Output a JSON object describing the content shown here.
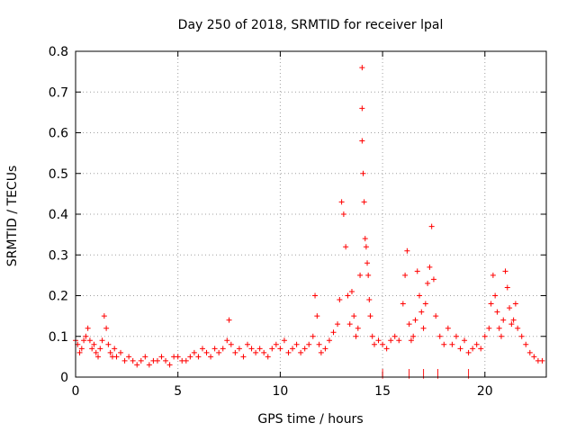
{
  "chart_data": {
    "type": "scatter",
    "title": "Day 250 of 2018, SRMTID for receiver lpal",
    "xlabel": "GPS time / hours",
    "ylabel": "SRMTID / TECUs",
    "xlim": [
      0,
      23
    ],
    "ylim": [
      0,
      0.8
    ],
    "xticks": [
      "0",
      "5",
      "10",
      "15",
      "20"
    ],
    "yticks": [
      "0",
      "0.1",
      "0.2",
      "0.3",
      "0.4",
      "0.5",
      "0.6",
      "0.7",
      "0.8"
    ],
    "grid": true,
    "marker": "+",
    "series": [
      {
        "name": "SRMTID",
        "color": "#ff0000",
        "x": [
          0.0,
          0.1,
          0.2,
          0.3,
          0.4,
          0.5,
          0.6,
          0.7,
          0.8,
          0.9,
          1.0,
          1.1,
          1.2,
          1.3,
          1.4,
          1.5,
          1.6,
          1.7,
          1.8,
          1.9,
          2.0,
          2.2,
          2.4,
          2.6,
          2.8,
          3.0,
          3.2,
          3.4,
          3.6,
          3.8,
          4.0,
          4.2,
          4.4,
          4.6,
          4.8,
          5.0,
          5.2,
          5.4,
          5.6,
          5.8,
          6.0,
          6.2,
          6.4,
          6.6,
          6.8,
          7.0,
          7.2,
          7.4,
          7.5,
          7.6,
          7.8,
          8.0,
          8.2,
          8.4,
          8.6,
          8.8,
          9.0,
          9.2,
          9.4,
          9.6,
          9.8,
          10.0,
          10.2,
          10.4,
          10.6,
          10.8,
          11.0,
          11.2,
          11.4,
          11.6,
          11.7,
          11.8,
          11.9,
          12.0,
          12.2,
          12.4,
          12.6,
          12.8,
          12.9,
          13.0,
          13.1,
          13.2,
          13.3,
          13.4,
          13.5,
          13.6,
          13.7,
          13.8,
          13.9,
          14.0,
          14.0,
          14.0,
          14.05,
          14.1,
          14.15,
          14.2,
          14.25,
          14.3,
          14.35,
          14.4,
          14.5,
          14.6,
          14.8,
          15.0,
          15.2,
          15.4,
          15.6,
          15.8,
          16.0,
          16.1,
          16.2,
          16.3,
          16.4,
          16.5,
          16.6,
          16.7,
          16.8,
          16.9,
          17.0,
          17.1,
          17.2,
          17.3,
          17.4,
          17.5,
          17.6,
          17.8,
          18.0,
          18.2,
          18.4,
          18.6,
          18.8,
          19.0,
          19.2,
          19.4,
          19.6,
          19.8,
          20.0,
          20.2,
          20.3,
          20.4,
          20.5,
          20.6,
          20.7,
          20.8,
          20.9,
          21.0,
          21.1,
          21.2,
          21.3,
          21.4,
          21.5,
          21.6,
          21.8,
          22.0,
          22.2,
          22.4,
          22.6,
          22.8
        ],
        "y": [
          0.09,
          0.08,
          0.06,
          0.07,
          0.09,
          0.1,
          0.12,
          0.09,
          0.07,
          0.08,
          0.06,
          0.05,
          0.07,
          0.09,
          0.15,
          0.12,
          0.08,
          0.06,
          0.05,
          0.07,
          0.05,
          0.06,
          0.04,
          0.05,
          0.04,
          0.03,
          0.04,
          0.05,
          0.03,
          0.04,
          0.04,
          0.05,
          0.04,
          0.03,
          0.05,
          0.05,
          0.04,
          0.04,
          0.05,
          0.06,
          0.05,
          0.07,
          0.06,
          0.05,
          0.07,
          0.06,
          0.07,
          0.09,
          0.14,
          0.08,
          0.06,
          0.07,
          0.05,
          0.08,
          0.07,
          0.06,
          0.07,
          0.06,
          0.05,
          0.07,
          0.08,
          0.07,
          0.09,
          0.06,
          0.07,
          0.08,
          0.06,
          0.07,
          0.08,
          0.1,
          0.2,
          0.15,
          0.08,
          0.06,
          0.07,
          0.09,
          0.11,
          0.13,
          0.19,
          0.43,
          0.4,
          0.32,
          0.2,
          0.13,
          0.21,
          0.15,
          0.1,
          0.12,
          0.25,
          0.76,
          0.66,
          0.58,
          0.5,
          0.43,
          0.34,
          0.32,
          0.28,
          0.25,
          0.19,
          0.15,
          0.1,
          0.08,
          0.09,
          0.08,
          0.07,
          0.09,
          0.1,
          0.09,
          0.18,
          0.25,
          0.31,
          0.13,
          0.09,
          0.1,
          0.14,
          0.26,
          0.2,
          0.16,
          0.12,
          0.18,
          0.23,
          0.27,
          0.37,
          0.24,
          0.15,
          0.1,
          0.08,
          0.12,
          0.08,
          0.1,
          0.07,
          0.09,
          0.06,
          0.07,
          0.08,
          0.07,
          0.1,
          0.12,
          0.18,
          0.25,
          0.2,
          0.16,
          0.12,
          0.1,
          0.14,
          0.26,
          0.22,
          0.17,
          0.13,
          0.14,
          0.18,
          0.12,
          0.1,
          0.08,
          0.06,
          0.05,
          0.04,
          0.04
        ]
      }
    ],
    "annotations": [
      {
        "text": "|",
        "x": 15.0,
        "y": 0.0
      },
      {
        "text": "|",
        "x": 16.3,
        "y": 0.0
      },
      {
        "text": "|",
        "x": 17.0,
        "y": 0.0
      },
      {
        "text": "|",
        "x": 17.7,
        "y": 0.0
      },
      {
        "text": "|",
        "x": 19.2,
        "y": 0.0
      }
    ]
  }
}
